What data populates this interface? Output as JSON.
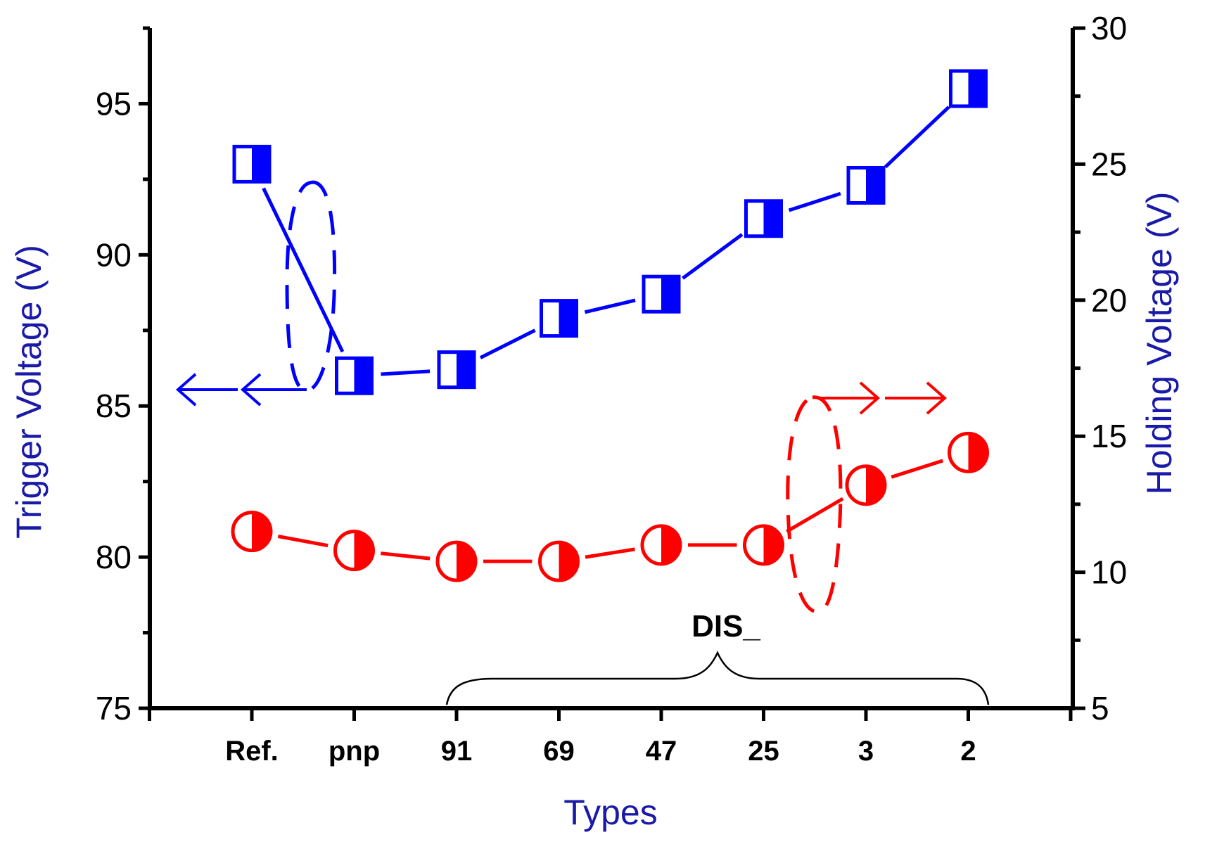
{
  "chart_data": {
    "type": "line",
    "categories": [
      "Ref.",
      "pnp",
      "91",
      "69",
      "47",
      "25",
      "3",
      "2"
    ],
    "xlabel": "Types",
    "left_axis": {
      "label": "Trigger Voltage (V)",
      "ylim": [
        75,
        97.5
      ],
      "ticks": [
        75,
        80,
        85,
        90,
        95
      ],
      "color": "#1a1aa8"
    },
    "right_axis": {
      "label": "Holding Voltage (V)",
      "ylim": [
        5,
        30
      ],
      "ticks": [
        5,
        10,
        15,
        20,
        25,
        30
      ],
      "color": "#1a1aa8"
    },
    "series": [
      {
        "name": "Trigger Voltage",
        "axis": "left",
        "marker": "half-filled-square",
        "color": "#0000ff",
        "values": [
          93.0,
          86.0,
          86.2,
          87.9,
          88.7,
          91.2,
          92.3,
          95.5
        ]
      },
      {
        "name": "Holding Voltage",
        "axis": "right",
        "marker": "half-filled-circle",
        "color": "#ff0000",
        "values": [
          11.5,
          10.8,
          10.4,
          10.4,
          11.0,
          11.0,
          13.2,
          14.4
        ]
      }
    ],
    "annotations": {
      "bracket_label": "DIS_",
      "bracket_range": [
        "91",
        "2"
      ],
      "left_arrows_label": "blue series reads on left axis",
      "right_arrows_label": "red series reads on right axis"
    }
  }
}
